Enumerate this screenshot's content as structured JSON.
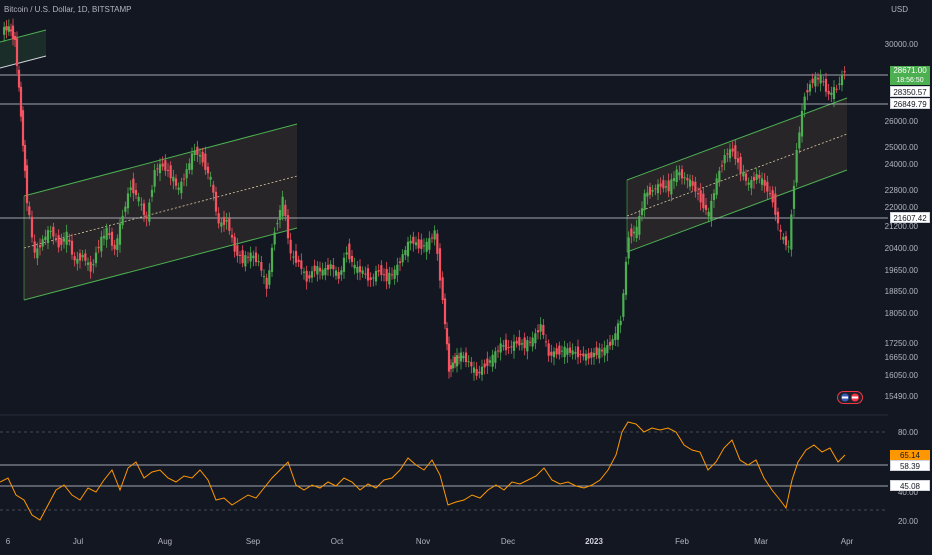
{
  "header": {
    "symbol_title": "Bitcoin / U.S. Dollar, 1D, BITSTAMP",
    "currency": "USD"
  },
  "price_axis": {
    "labels": [
      "30000.00",
      "26000.00",
      "25000.00",
      "24000.00",
      "22800.00",
      "22000.00",
      "21200.00",
      "20400.00",
      "19650.00",
      "18850.00",
      "18050.00",
      "17250.00",
      "16650.00",
      "16050.00",
      "15490.00"
    ]
  },
  "price_tags": {
    "last_price": "28671.00",
    "countdown": "18:56:50",
    "level_1": "28350.57",
    "level_2": "26849.79",
    "level_3": "21607.42"
  },
  "rsi_axis": {
    "labels": [
      "80.00",
      "40.00",
      "20.00"
    ],
    "tags": {
      "value": "65.14",
      "level_a": "58.39",
      "level_b": "45.08"
    }
  },
  "time_axis": {
    "labels": [
      "6",
      "Jul",
      "Aug",
      "Sep",
      "Oct",
      "Nov",
      "Dec",
      "2023",
      "Feb",
      "Mar",
      "Apr"
    ]
  },
  "colors": {
    "background": "#131722",
    "up": "#4caf50",
    "down": "#f7525f",
    "channel": "#4caf50",
    "rsi": "#ff9800",
    "horizontal_line": "#d1d4dc"
  }
}
